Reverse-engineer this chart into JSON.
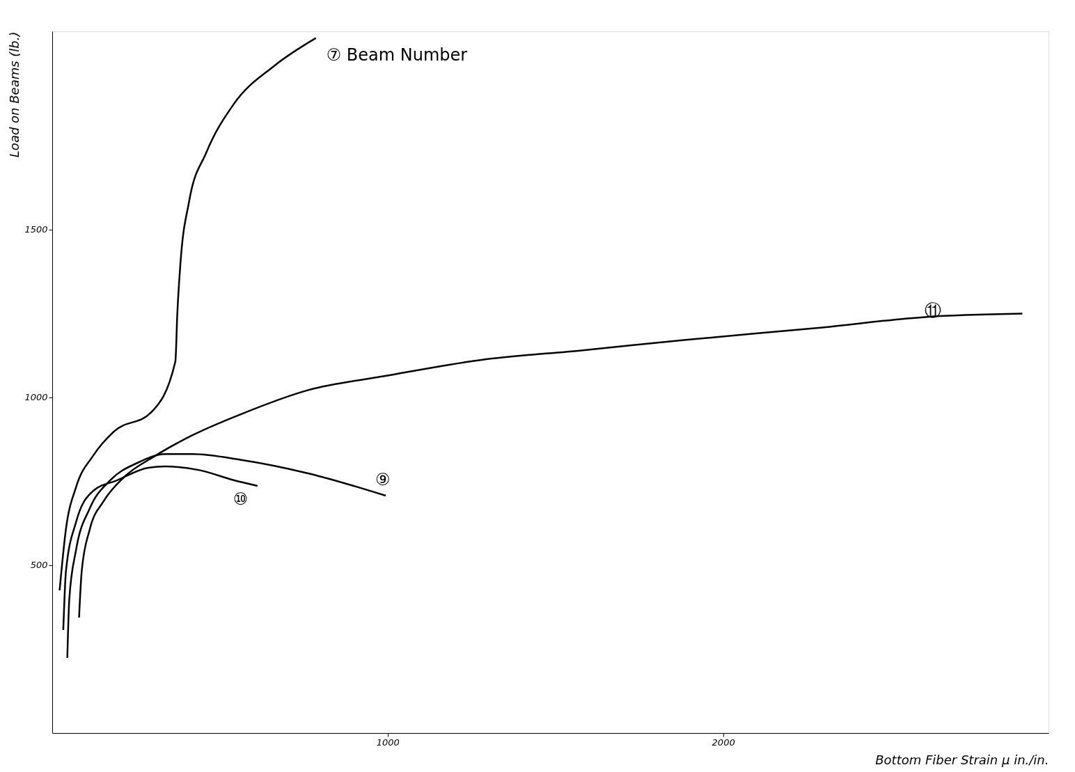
{
  "chart_data": {
    "type": "line",
    "xlabel": "Bottom Fiber Strain μ in./in.",
    "ylabel": "Load on Beams (lb.)",
    "xlim": [
      0,
      2970
    ],
    "ylim": [
      0,
      2090
    ],
    "xticks": [
      1000,
      2000
    ],
    "yticks": [
      500,
      1000,
      1500
    ],
    "grid": false,
    "marker": "none",
    "line_style": "solid",
    "series": [
      {
        "name": "⑦ Beam Number",
        "color": "#000000",
        "x": [
          22,
          41,
          71,
          122,
          184,
          296,
          367,
          373,
          382,
          408,
          459,
          541,
          663,
          786
        ],
        "values": [
          425,
          608,
          732,
          826,
          898,
          956,
          1106,
          1251,
          1396,
          1583,
          1728,
          1873,
          1988,
          2070
        ]
      },
      {
        "name": "⑩",
        "color": "#000000",
        "x": [
          33,
          41,
          71,
          122,
          194,
          286,
          337,
          439,
          541,
          612
        ],
        "values": [
          307,
          483,
          628,
          721,
          753,
          790,
          794,
          783,
          753,
          736
        ]
      },
      {
        "name": "⑨",
        "color": "#000000",
        "x": [
          45,
          51,
          71,
          112,
          173,
          255,
          337,
          418,
          561,
          765,
          994
        ],
        "values": [
          224,
          400,
          545,
          669,
          753,
          805,
          831,
          831,
          814,
          773,
          707
        ]
      },
      {
        "name": "⑪",
        "color": "#000000",
        "x": [
          80,
          88,
          112,
          153,
          214,
          306,
          418,
          561,
          765,
          990,
          1276,
          1582,
          1888,
          2296,
          2602,
          2892
        ],
        "values": [
          344,
          483,
          607,
          690,
          762,
          825,
          887,
          949,
          1022,
          1063,
          1111,
          1140,
          1171,
          1208,
          1239,
          1249
        ]
      }
    ]
  }
}
